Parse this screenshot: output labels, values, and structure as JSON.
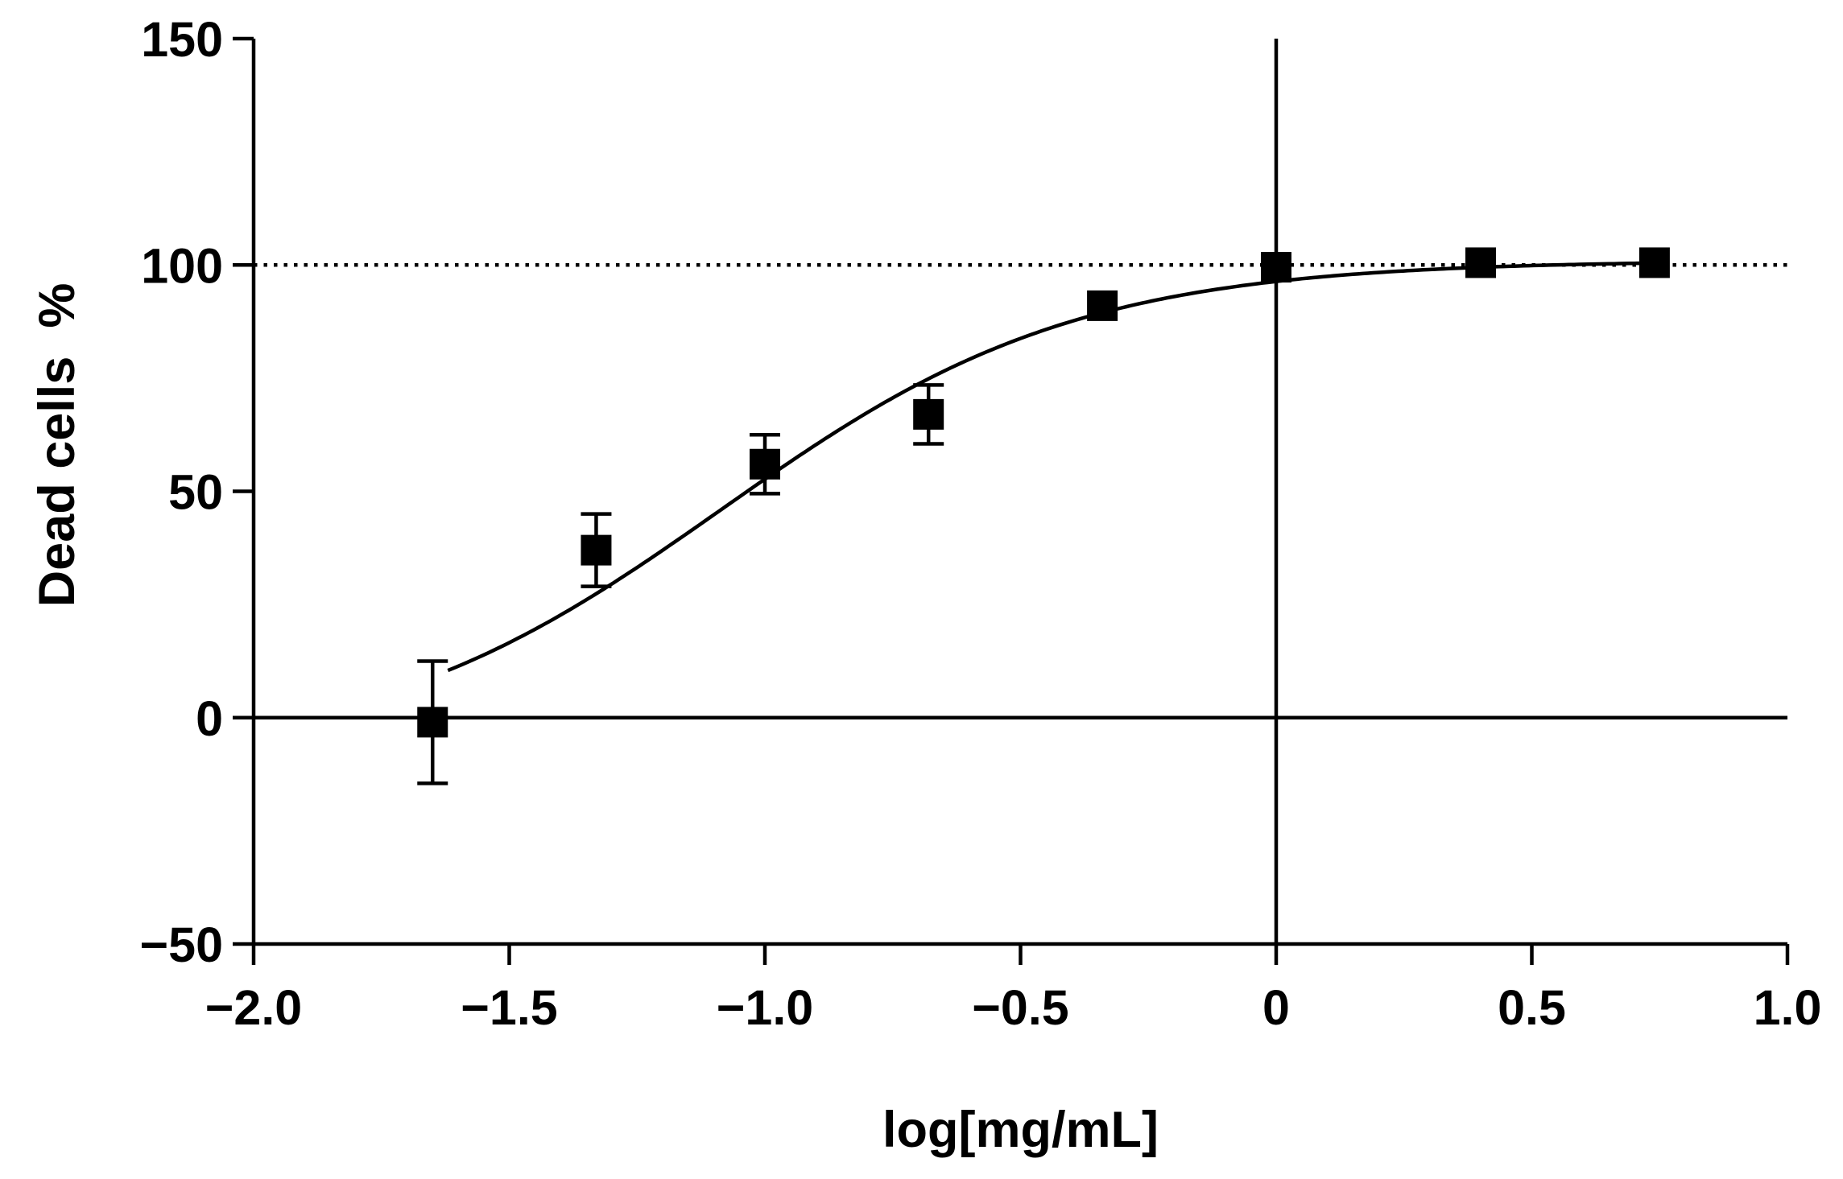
{
  "chart_data": {
    "type": "scatter",
    "title": "",
    "xlabel": "log[mg/mL]",
    "ylabel": "Dead cells  %",
    "xlim": [
      -2.0,
      1.0
    ],
    "ylim": [
      -50,
      150
    ],
    "x_ticks": [
      -2.0,
      -1.5,
      -1.0,
      -0.5,
      0,
      0.5,
      1.0
    ],
    "x_tick_labels": [
      "−2.0",
      "−1.5",
      "−1.0",
      "−0.5",
      "0",
      "0.5",
      "1.0"
    ],
    "y_ticks": [
      -50,
      0,
      50,
      100,
      150
    ],
    "y_tick_labels": [
      "−50",
      "0",
      "50",
      "100",
      "150"
    ],
    "grid": false,
    "legend": "none",
    "reference_lines": {
      "horizontal_solid": 0,
      "vertical_solid": 0,
      "horizontal_dotted": 100
    },
    "series": [
      {
        "marker": "square",
        "color": "#000000",
        "points": [
          {
            "x": -1.65,
            "y": -1,
            "err": 13.5
          },
          {
            "x": -1.33,
            "y": 37,
            "err": 8
          },
          {
            "x": -1.0,
            "y": 56,
            "err": 6.5
          },
          {
            "x": -0.68,
            "y": 67,
            "err": 6.5
          },
          {
            "x": -0.34,
            "y": 91,
            "err": 0
          },
          {
            "x": 0.0,
            "y": 99.5,
            "err": 0
          },
          {
            "x": 0.4,
            "y": 100.5,
            "err": 0
          },
          {
            "x": 0.74,
            "y": 100.5,
            "err": 0
          }
        ]
      }
    ],
    "fit_curve": {
      "model": "sigmoid",
      "bottom": -9,
      "top": 101,
      "logEC50": -1.085,
      "hill": 1.25,
      "x_range": [
        -1.62,
        0.74
      ]
    }
  }
}
